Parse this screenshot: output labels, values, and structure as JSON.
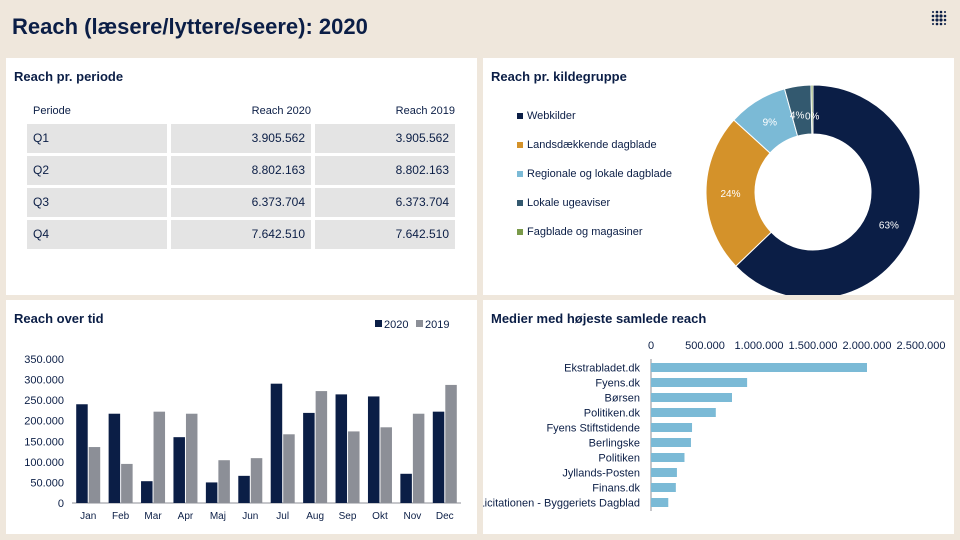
{
  "page": {
    "title": "Reach (læsere/lyttere/seere): 2020"
  },
  "period_panel": {
    "title": "Reach pr. periode",
    "headers": [
      "Periode",
      "Reach 2020",
      "Reach 2019"
    ],
    "rows": [
      {
        "period": "Q1",
        "reach2020": "3.905.562",
        "reach2019": "3.905.562"
      },
      {
        "period": "Q2",
        "reach2020": "8.802.163",
        "reach2019": "8.802.163"
      },
      {
        "period": "Q3",
        "reach2020": "6.373.704",
        "reach2019": "6.373.704"
      },
      {
        "period": "Q4",
        "reach2020": "7.642.510",
        "reach2019": "7.642.510"
      }
    ]
  },
  "source_panel": {
    "title": "Reach pr. kildegruppe"
  },
  "time_panel": {
    "title": "Reach over tid"
  },
  "media_panel": {
    "title": "Medier med højeste samlede reach"
  },
  "colors": {
    "navy": "#0b1e46",
    "gold": "#d4922a",
    "lightblue": "#7bbad6",
    "teal": "#33596f",
    "olive": "#7a9a4a",
    "grey": "#8c8f97",
    "bar_blue": "#7bbad6"
  },
  "chart_data": [
    {
      "type": "pie",
      "variant": "donut",
      "categories": [
        "Webkilder",
        "Landsdækkende dagblade",
        "Regionale og lokale dagblade",
        "Lokale ugeaviser",
        "Fagblade og magasiner"
      ],
      "values": [
        63,
        24,
        9,
        4,
        0.3
      ],
      "value_labels": [
        "63%",
        "24%",
        "9%",
        "4%",
        "0%"
      ],
      "colors": [
        "#0b1e46",
        "#d4922a",
        "#7bbad6",
        "#33596f",
        "#7a9a4a"
      ],
      "legend": "left"
    },
    {
      "type": "bar",
      "categories": [
        "Jan",
        "Feb",
        "Mar",
        "Apr",
        "Maj",
        "Jun",
        "Jul",
        "Aug",
        "Sep",
        "Okt",
        "Nov",
        "Dec"
      ],
      "series": [
        {
          "name": "2020",
          "values": [
            240000,
            217000,
            53000,
            160000,
            50000,
            66000,
            290000,
            219000,
            264000,
            259000,
            71000,
            222000
          ],
          "color": "#0b1e46"
        },
        {
          "name": "2019",
          "values": [
            136000,
            95000,
            222000,
            217000,
            104000,
            109000,
            167000,
            272000,
            174000,
            184000,
            217000,
            287000
          ],
          "color": "#8c8f97"
        }
      ],
      "ylim": [
        0,
        350000
      ],
      "yticks": [
        "0",
        "50.000",
        "100.000",
        "150.000",
        "200.000",
        "250.000",
        "300.000",
        "350.000"
      ],
      "ytick_values": [
        0,
        50000,
        100000,
        150000,
        200000,
        250000,
        300000,
        350000
      ],
      "legend": "top-right",
      "grid": false
    },
    {
      "type": "bar",
      "orientation": "horizontal",
      "categories": [
        "Ekstrabladet.dk",
        "Fyens.dk",
        "Børsen",
        "Politiken.dk",
        "Fyens Stiftstidende",
        "Berlingske",
        "Politiken",
        "Jyllands-Posten",
        "Finans.dk",
        "Licitationen - Byggeriets Dagblad"
      ],
      "values": [
        2000000,
        890000,
        750000,
        600000,
        380000,
        370000,
        310000,
        240000,
        230000,
        160000
      ],
      "xlim": [
        0,
        2500000
      ],
      "xticks": [
        "0",
        "500.000",
        "1.000.000",
        "1.500.000",
        "2.000.000",
        "2.500.000"
      ],
      "xtick_values": [
        0,
        500000,
        1000000,
        1500000,
        2000000,
        2500000
      ],
      "color": "#7bbad6",
      "grid": false
    }
  ]
}
